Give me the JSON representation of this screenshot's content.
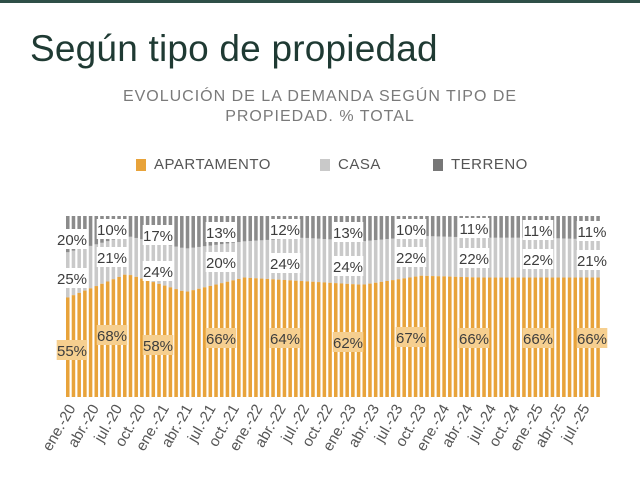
{
  "page": {
    "title": "Según tipo de propiedad"
  },
  "chart_data": {
    "type": "bar",
    "stacked": true,
    "title": "EVOLUCIÓN DE LA DEMANDA SEGÚN TIPO DE PROPIEDAD. % TOTAL",
    "title_lines": [
      "EVOLUCIÓN DE LA DEMANDA SEGÚN TIPO DE",
      "PROPIEDAD. % TOTAL"
    ],
    "xlabel": "",
    "ylabel": "",
    "ylim": [
      0,
      100
    ],
    "grid": false,
    "legend_position": "top",
    "colors": {
      "APARTAMENTO": "#e8a33a",
      "CASA": "#c9c9c9",
      "TERRENO": "#777777"
    },
    "x_tick_labels": [
      "ene.-20",
      "abr.-20",
      "jul.-20",
      "oct.-20",
      "ene.-21",
      "abr.-21",
      "jul.-21",
      "oct.-21",
      "ene.-22",
      "abr.-22",
      "jul.-22",
      "oct.-22",
      "ene.-23",
      "abr.-23",
      "jul.-23",
      "oct.-23",
      "ene.-24",
      "abr.-24",
      "jul.-24",
      "oct.-24",
      "ene.-25",
      "abr.-25",
      "jul.-25"
    ],
    "label_groups": [
      {
        "categories": [
          "ene.-20",
          "abr.-20",
          "jul.-20"
        ],
        "APARTAMENTO": [
          55,
          68
        ],
        "CASA": [
          25,
          21
        ],
        "TERRENO": [
          20,
          10
        ]
      },
      {
        "categories": [
          "oct.-20",
          "ene.-21",
          "abr.-21"
        ],
        "APARTAMENTO": [
          58
        ],
        "CASA": [
          24
        ],
        "TERRENO": [
          17
        ]
      },
      {
        "categories": [
          "jul.-21",
          "oct.-21",
          "ene.-22"
        ],
        "APARTAMENTO": [
          66
        ],
        "CASA": [
          20
        ],
        "TERRENO": [
          13
        ]
      },
      {
        "categories": [
          "abr.-22",
          "jul.-22",
          "oct.-22"
        ],
        "APARTAMENTO": [
          64
        ],
        "CASA": [
          24
        ],
        "TERRENO": [
          12
        ]
      },
      {
        "categories": [
          "ene.-23",
          "abr.-23",
          "jul.-23"
        ],
        "APARTAMENTO": [
          62
        ],
        "CASA": [
          24
        ],
        "TERRENO": [
          13
        ]
      },
      {
        "categories": [
          "oct.-23",
          "ene.-24",
          "abr.-24"
        ],
        "APARTAMENTO": [
          67
        ],
        "CASA": [
          22
        ],
        "TERRENO": [
          10
        ]
      },
      {
        "categories": [
          "jul.-24",
          "oct.-24",
          "ene.-25"
        ],
        "APARTAMENTO": [
          66
        ],
        "CASA": [
          22
        ],
        "TERRENO": [
          11
        ]
      },
      {
        "categories": [
          "abr.-25",
          "jul.-25"
        ],
        "APARTAMENTO": [
          66
        ],
        "CASA": [
          22
        ],
        "TERRENO": [
          11
        ]
      },
      {
        "categories": [],
        "APARTAMENTO": [
          66
        ],
        "CASA": [
          21
        ],
        "TERRENO": [
          11
        ]
      }
    ],
    "series": [
      {
        "name": "APARTAMENTO",
        "values": [
          55,
          68,
          58,
          66,
          64,
          62,
          67,
          66,
          66,
          66
        ]
      },
      {
        "name": "CASA",
        "values": [
          25,
          21,
          24,
          20,
          24,
          24,
          22,
          22,
          22,
          21
        ]
      },
      {
        "name": "TERRENO",
        "values": [
          20,
          10,
          17,
          13,
          12,
          13,
          10,
          11,
          11,
          11
        ]
      }
    ],
    "data_labels": {
      "APARTAMENTO": [
        "55%",
        "68%",
        "58%",
        "66%",
        "64%",
        "62%",
        "67%",
        "66%",
        "66%",
        "66%"
      ],
      "CASA": [
        "25%",
        "21%",
        "24%",
        "20%",
        "24%",
        "24%",
        "22%",
        "22%",
        "22%",
        "21%"
      ],
      "TERRENO": [
        "20%",
        "10%",
        "17%",
        "13%",
        "12%",
        "13%",
        "10%",
        "11%",
        "11%",
        "11%"
      ]
    }
  }
}
